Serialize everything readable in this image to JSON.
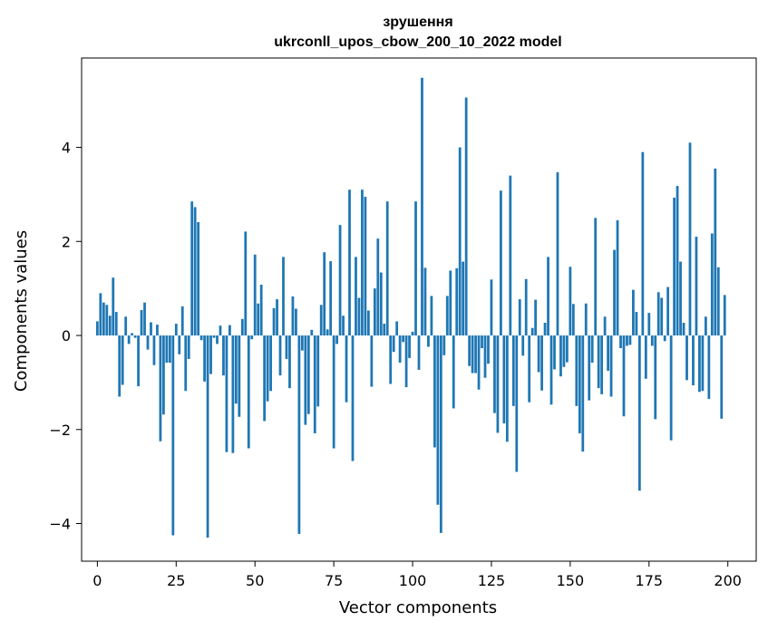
{
  "chart_data": {
    "type": "bar",
    "title": "зрушення",
    "subtitle": "ukrconll_upos_cbow_200_10_2022 model",
    "xlabel": "Vector components",
    "ylabel": "Components values",
    "bar_color": "#1f77b4",
    "xlim": [
      -5,
      209
    ],
    "ylim": [
      -4.8,
      5.9
    ],
    "xticks": [
      0,
      25,
      50,
      75,
      100,
      125,
      150,
      175,
      200
    ],
    "yticks": [
      -4,
      -2,
      0,
      2,
      4
    ],
    "xtick_labels": [
      "0",
      "25",
      "50",
      "75",
      "100",
      "125",
      "150",
      "175",
      "200"
    ],
    "ytick_labels": [
      "−4",
      "−2",
      "0",
      "2",
      "4"
    ],
    "grid": false,
    "x": [
      0,
      1,
      2,
      3,
      4,
      5,
      6,
      7,
      8,
      9,
      10,
      11,
      12,
      13,
      14,
      15,
      16,
      17,
      18,
      19,
      20,
      21,
      22,
      23,
      24,
      25,
      26,
      27,
      28,
      29,
      30,
      31,
      32,
      33,
      34,
      35,
      36,
      37,
      38,
      39,
      40,
      41,
      42,
      43,
      44,
      45,
      46,
      47,
      48,
      49,
      50,
      51,
      52,
      53,
      54,
      55,
      56,
      57,
      58,
      59,
      60,
      61,
      62,
      63,
      64,
      65,
      66,
      67,
      68,
      69,
      70,
      71,
      72,
      73,
      74,
      75,
      76,
      77,
      78,
      79,
      80,
      81,
      82,
      83,
      84,
      85,
      86,
      87,
      88,
      89,
      90,
      91,
      92,
      93,
      94,
      95,
      96,
      97,
      98,
      99,
      100,
      101,
      102,
      103,
      104,
      105,
      106,
      107,
      108,
      109,
      110,
      111,
      112,
      113,
      114,
      115,
      116,
      117,
      118,
      119,
      120,
      121,
      122,
      123,
      124,
      125,
      126,
      127,
      128,
      129,
      130,
      131,
      132,
      133,
      134,
      135,
      136,
      137,
      138,
      139,
      140,
      141,
      142,
      143,
      144,
      145,
      146,
      147,
      148,
      149,
      150,
      151,
      152,
      153,
      154,
      155,
      156,
      157,
      158,
      159,
      160,
      161,
      162,
      163,
      164,
      165,
      166,
      167,
      168,
      169,
      170,
      171,
      172,
      173,
      174,
      175,
      176,
      177,
      178,
      179,
      180,
      181,
      182,
      183,
      184,
      185,
      186,
      187,
      188,
      189,
      190,
      191,
      192,
      193,
      194,
      195,
      196,
      197,
      198,
      199
    ],
    "values": [
      0.3,
      0.9,
      0.7,
      0.65,
      0.42,
      1.23,
      0.5,
      -1.3,
      -1.05,
      0.4,
      -0.18,
      0.05,
      -0.05,
      -1.08,
      0.54,
      0.7,
      -0.3,
      0.28,
      -0.63,
      0.23,
      -2.25,
      -1.68,
      -0.58,
      -0.58,
      -4.25,
      0.25,
      -0.4,
      0.62,
      -1.18,
      -0.5,
      2.85,
      2.73,
      2.41,
      -0.1,
      -0.98,
      -4.3,
      -0.82,
      -0.05,
      -0.18,
      0.21,
      -0.85,
      -2.48,
      0.22,
      -2.5,
      -1.45,
      -1.73,
      0.35,
      2.21,
      -2.4,
      -0.08,
      1.72,
      0.68,
      1.08,
      -1.82,
      -1.4,
      -1.18,
      0.58,
      0.77,
      -0.85,
      1.67,
      -0.5,
      -1.12,
      0.83,
      0.57,
      -4.22,
      -0.32,
      -1.9,
      -1.67,
      0.12,
      -2.08,
      -1.51,
      0.65,
      1.77,
      0.13,
      1.58,
      -2.4,
      -0.18,
      2.35,
      0.42,
      -1.42,
      3.1,
      -2.67,
      1.67,
      0.8,
      3.1,
      2.95,
      0.53,
      -1.09,
      1.0,
      2.06,
      1.34,
      0.25,
      2.85,
      -1.03,
      -0.35,
      0.3,
      -0.58,
      -0.14,
      -1.1,
      -0.48,
      0.08,
      2.85,
      -0.73,
      5.48,
      1.44,
      -0.24,
      0.84,
      -2.38,
      -3.6,
      -4.2,
      -0.42,
      0.84,
      1.38,
      -1.55,
      1.43,
      4.0,
      1.57,
      5.06,
      -0.65,
      -0.8,
      -0.8,
      -1.15,
      -0.27,
      -0.9,
      -0.6,
      1.19,
      -1.65,
      -2.07,
      3.08,
      -1.87,
      -2.26,
      3.4,
      -1.5,
      -2.9,
      0.77,
      -0.43,
      1.2,
      -1.42,
      0.16,
      0.76,
      -0.78,
      -1.17,
      0.27,
      1.67,
      -1.47,
      -0.72,
      3.47,
      -0.87,
      -0.67,
      -0.57,
      1.46,
      0.67,
      -1.5,
      -2.08,
      -2.47,
      0.68,
      -1.38,
      -0.58,
      2.5,
      -1.12,
      -1.25,
      0.4,
      -0.75,
      -1.3,
      1.82,
      2.45,
      -0.27,
      -1.72,
      -0.22,
      -0.2,
      0.97,
      0.5,
      -3.3,
      3.9,
      -0.92,
      0.48,
      -0.22,
      -1.78,
      0.92,
      0.8,
      -0.12,
      1.03,
      -2.23,
      2.93,
      3.18,
      1.57,
      0.27,
      -0.95,
      4.1,
      -1.06,
      2.1,
      -1.2,
      -1.18,
      0.4,
      -1.35,
      2.17,
      3.55,
      1.45,
      -1.77,
      0.86
    ]
  }
}
